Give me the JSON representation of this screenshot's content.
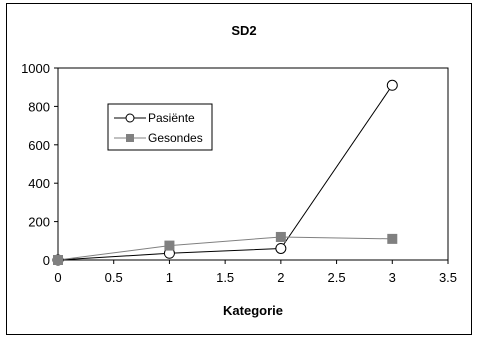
{
  "chart_data": {
    "type": "line",
    "title": "SD2",
    "xlabel": "Kategorie",
    "ylabel": "",
    "xlim": [
      0,
      3.5
    ],
    "ylim": [
      0,
      1000
    ],
    "x_ticks": [
      "0",
      "0.5",
      "1",
      "1.5",
      "2",
      "2.5",
      "3",
      "3.5"
    ],
    "y_ticks": [
      "0",
      "200",
      "400",
      "600",
      "800",
      "1000"
    ],
    "grid": false,
    "legend_position": "left-middle inside",
    "series": [
      {
        "name": "Pasiënte",
        "x": [
          0,
          1,
          2,
          3
        ],
        "y": [
          0,
          35,
          60,
          910
        ],
        "color": "#000000",
        "marker": "open-circle"
      },
      {
        "name": "Gesondes",
        "x": [
          0,
          1,
          2,
          3
        ],
        "y": [
          0,
          75,
          120,
          110
        ],
        "color": "#808080",
        "marker": "filled-square"
      }
    ]
  }
}
